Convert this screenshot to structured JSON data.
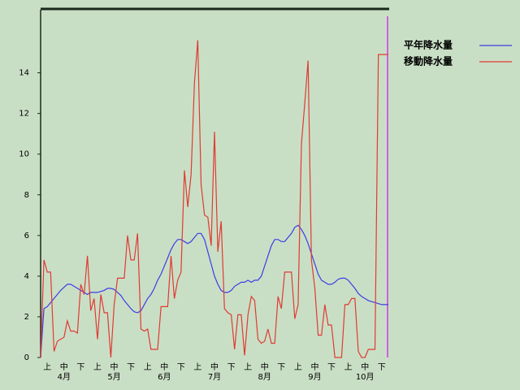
{
  "chart_data": {
    "type": "line",
    "ylim": [
      0,
      17.1
    ],
    "yticks": [
      0,
      2,
      4,
      6,
      8,
      10,
      12,
      14
    ],
    "categories": [
      null,
      null,
      "上",
      null,
      null,
      null,
      null,
      "中",
      null,
      null,
      null,
      null,
      "下",
      null,
      null,
      null,
      null,
      "上",
      null,
      null,
      null,
      null,
      "中",
      null,
      null,
      null,
      null,
      "下",
      null,
      null,
      null,
      null,
      "上",
      null,
      null,
      null,
      null,
      "中",
      null,
      null,
      null,
      null,
      "下",
      null,
      null,
      null,
      null,
      "上",
      null,
      null,
      null,
      null,
      "中",
      null,
      null,
      null,
      null,
      "下",
      null,
      null,
      null,
      null,
      "上",
      null,
      null,
      null,
      null,
      "中",
      null,
      null,
      null,
      null,
      "下",
      null,
      null,
      null,
      null,
      "上",
      null,
      null,
      null,
      null,
      "中",
      null,
      null,
      null,
      null,
      "下",
      null,
      null,
      null,
      null,
      "上",
      null,
      null,
      null,
      null,
      "中",
      null,
      null,
      null,
      null,
      "下",
      null,
      null
    ],
    "months": [
      "4月",
      "5月",
      "6月",
      "7月",
      "8月",
      "9月",
      "10月"
    ],
    "series": [
      {
        "name": "平年降水量",
        "color": "#3c3ce6",
        "values": [
          0,
          2.4,
          2.5,
          2.7,
          2.9,
          3.1,
          3.3,
          3.45,
          3.6,
          3.6,
          3.5,
          3.4,
          3.3,
          3.2,
          3.1,
          3.2,
          3.2,
          3.2,
          3.25,
          3.3,
          3.4,
          3.4,
          3.35,
          3.2,
          3.05,
          2.8,
          2.6,
          2.4,
          2.25,
          2.2,
          2.3,
          2.6,
          2.9,
          3.1,
          3.4,
          3.8,
          4.1,
          4.5,
          4.9,
          5.3,
          5.6,
          5.8,
          5.8,
          5.7,
          5.6,
          5.7,
          5.9,
          6.1,
          6.1,
          5.8,
          5.2,
          4.6,
          4.0,
          3.6,
          3.3,
          3.2,
          3.2,
          3.3,
          3.5,
          3.6,
          3.7,
          3.7,
          3.8,
          3.7,
          3.8,
          3.8,
          4.0,
          4.5,
          5.0,
          5.5,
          5.8,
          5.8,
          5.7,
          5.7,
          5.9,
          6.1,
          6.4,
          6.5,
          6.3,
          6.0,
          5.6,
          5.1,
          4.6,
          4.1,
          3.8,
          3.7,
          3.6,
          3.6,
          3.7,
          3.85,
          3.9,
          3.9,
          3.8,
          3.6,
          3.4,
          3.15,
          3.0,
          2.9,
          2.8,
          2.75,
          2.7,
          2.65,
          2.6,
          2.6,
          2.6
        ]
      },
      {
        "name": "移動降水量",
        "color": "#e03a34",
        "values": [
          0,
          4.8,
          4.2,
          4.2,
          0.3,
          0.8,
          0.9,
          1.0,
          1.8,
          1.3,
          1.3,
          1.2,
          3.6,
          3.1,
          5.0,
          2.3,
          2.9,
          0.9,
          3.1,
          2.2,
          2.2,
          0,
          2.6,
          3.9,
          3.9,
          3.9,
          6.0,
          4.8,
          4.8,
          6.1,
          1.4,
          1.3,
          1.4,
          0.4,
          0.4,
          0.4,
          2.5,
          2.5,
          2.5,
          5.0,
          2.9,
          3.8,
          4.2,
          9.2,
          7.4,
          9.0,
          13.5,
          15.6,
          8.5,
          7.0,
          6.9,
          5.5,
          11.1,
          5.2,
          6.7,
          2.4,
          2.2,
          2.1,
          0.4,
          2.1,
          2.1,
          0.1,
          2.1,
          3.0,
          2.8,
          0.9,
          0.7,
          0.8,
          1.4,
          0.7,
          0.7,
          3.0,
          2.4,
          4.2,
          4.2,
          4.2,
          1.9,
          2.6,
          10.5,
          12.5,
          14.6,
          4.8,
          3.4,
          1.1,
          1.1,
          2.6,
          1.6,
          1.6,
          0,
          0,
          0,
          2.6,
          2.6,
          2.9,
          2.9,
          0.3,
          0,
          0,
          0.4,
          0.4,
          0.4,
          14.9,
          14.9,
          14.9,
          14.9
        ]
      }
    ]
  }
}
